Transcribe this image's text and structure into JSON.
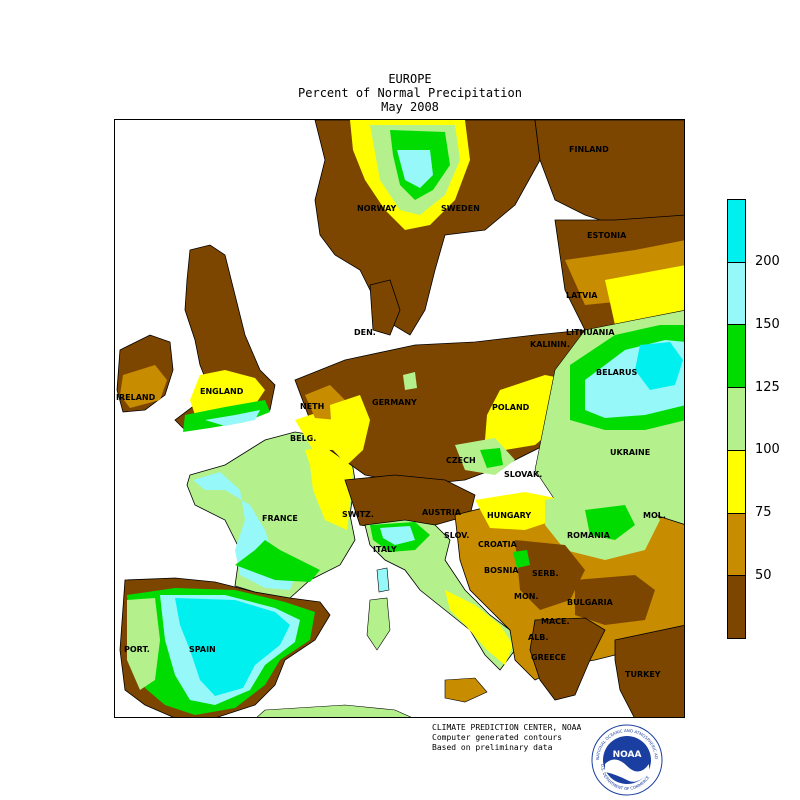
{
  "header": {
    "line1": "EUROPE",
    "line2": "Percent of Normal Precipitation",
    "line3": "May 2008"
  },
  "countries": [
    {
      "id": "finland",
      "label": "FINLAND"
    },
    {
      "id": "norway",
      "label": "NORWAY"
    },
    {
      "id": "sweden",
      "label": "SWEDEN"
    },
    {
      "id": "estonia",
      "label": "ESTONIA"
    },
    {
      "id": "latvia",
      "label": "LATVIA"
    },
    {
      "id": "lithuania",
      "label": "LITHUANIA"
    },
    {
      "id": "kalinin",
      "label": "KALININ."
    },
    {
      "id": "belarus",
      "label": "BELARUS"
    },
    {
      "id": "den",
      "label": "DEN."
    },
    {
      "id": "england",
      "label": "ENGLAND"
    },
    {
      "id": "ireland",
      "label": "IRELAND"
    },
    {
      "id": "neth",
      "label": "NETH"
    },
    {
      "id": "belg",
      "label": "BELG."
    },
    {
      "id": "germany",
      "label": "GERMANY"
    },
    {
      "id": "poland",
      "label": "POLAND"
    },
    {
      "id": "czech",
      "label": "CZECH"
    },
    {
      "id": "slovak",
      "label": "SLOVAK."
    },
    {
      "id": "ukraine",
      "label": "UKRAINE"
    },
    {
      "id": "france",
      "label": "FRANCE"
    },
    {
      "id": "switz",
      "label": "SWITZ."
    },
    {
      "id": "austria",
      "label": "AUSTRIA"
    },
    {
      "id": "hungary",
      "label": "HUNGARY"
    },
    {
      "id": "mol",
      "label": "MOL."
    },
    {
      "id": "romania",
      "label": "ROMANIA"
    },
    {
      "id": "italy",
      "label": "ITALY"
    },
    {
      "id": "slov",
      "label": "SLOV."
    },
    {
      "id": "croatia",
      "label": "CROATIA"
    },
    {
      "id": "bosnia",
      "label": "BOSNIA"
    },
    {
      "id": "serb",
      "label": "SERB."
    },
    {
      "id": "mon",
      "label": "MON."
    },
    {
      "id": "bulgaria",
      "label": "BULGARIA"
    },
    {
      "id": "mace",
      "label": "MACE."
    },
    {
      "id": "alb",
      "label": "ALB."
    },
    {
      "id": "greece",
      "label": "GREECE"
    },
    {
      "id": "turkey",
      "label": "TURKEY"
    },
    {
      "id": "port",
      "label": "PORT."
    },
    {
      "id": "spain",
      "label": "SPAIN"
    }
  ],
  "legend": {
    "segments_top_to_bottom": [
      {
        "range": "above 200",
        "color": "#00f0f0"
      },
      {
        "range": "150-200",
        "color": "#96f8f8"
      },
      {
        "range": "125-150",
        "color": "#00dc00"
      },
      {
        "range": "100-125",
        "color": "#b4f08c"
      },
      {
        "range": "75-100",
        "color": "#ffff00"
      },
      {
        "range": "50-75",
        "color": "#c88c00"
      },
      {
        "range": "below 50",
        "color": "#7d4600"
      }
    ],
    "ticks": [
      "200",
      "150",
      "125",
      "100",
      "75",
      "50"
    ]
  },
  "credits": {
    "line1": "CLIMATE PREDICTION CENTER, NOAA",
    "line2": "Computer generated contours",
    "line3": "Based on preliminary data"
  },
  "logo": {
    "text": "NOAA",
    "ring_text": "NATIONAL OCEANIC AND ATMOSPHERIC ADMINISTRATION",
    "ring_text_bottom": "U.S. DEPARTMENT OF COMMERCE"
  },
  "colors": {
    "land_dry": "#7d4600",
    "land_below_normal": "#c88c00",
    "near_normal": "#ffff00",
    "above_normal": "#b4f08c",
    "wet": "#00dc00",
    "very_wet": "#96f8f8",
    "extreme_wet": "#00f0f0",
    "sea": "#ffffff"
  }
}
